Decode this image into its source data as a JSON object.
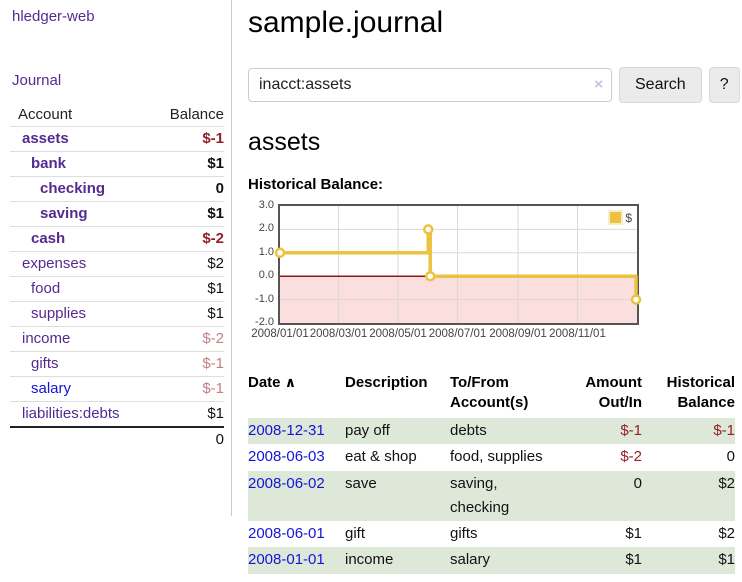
{
  "colors": {
    "link_purple": "#552a90",
    "link_blue": "#1414d6",
    "negative_red": "#932127",
    "dim_negative_red": "#c27f86",
    "stripe_green": "#dee8d9",
    "chart_line_gold": "#edc240",
    "chart_negative_bg": "#fbdede",
    "chart_zero_line": "#8b1a1a",
    "chart_grid": "#d9d9d9",
    "chart_border": "#555555"
  },
  "sidebar": {
    "brand": "hledger-web",
    "journal_label": "Journal",
    "accounts_table": {
      "headers": [
        "Account",
        "Balance"
      ],
      "rows": [
        {
          "name": "assets",
          "depth": 1,
          "bold": true,
          "balance": "$-1",
          "balance_style": "neg",
          "link_style": "purple"
        },
        {
          "name": "bank",
          "depth": 2,
          "bold": true,
          "balance": "$1",
          "balance_style": "pos",
          "link_style": "purple"
        },
        {
          "name": "checking",
          "depth": 3,
          "bold": true,
          "balance": "0",
          "balance_style": "pos",
          "link_style": "purple"
        },
        {
          "name": "saving",
          "depth": 3,
          "bold": true,
          "balance": "$1",
          "balance_style": "pos",
          "link_style": "purple"
        },
        {
          "name": "cash",
          "depth": 2,
          "bold": true,
          "balance": "$-2",
          "balance_style": "neg",
          "link_style": "purple"
        },
        {
          "name": "expenses",
          "depth": 1,
          "bold": false,
          "balance": "$2",
          "balance_style": "pos",
          "link_style": "purple"
        },
        {
          "name": "food",
          "depth": 2,
          "bold": false,
          "balance": "$1",
          "balance_style": "pos",
          "link_style": "purple"
        },
        {
          "name": "supplies",
          "depth": 2,
          "bold": false,
          "balance": "$1",
          "balance_style": "pos",
          "link_style": "purple"
        },
        {
          "name": "income",
          "depth": 1,
          "bold": false,
          "balance": "$-2",
          "balance_style": "dimneg",
          "link_style": "purple"
        },
        {
          "name": "gifts",
          "depth": 2,
          "bold": false,
          "balance": "$-1",
          "balance_style": "dimneg",
          "link_style": "purple"
        },
        {
          "name": "salary",
          "depth": 2,
          "bold": false,
          "balance": "$-1",
          "balance_style": "dimneg",
          "link_style": "blue"
        },
        {
          "name": "liabilities:debts",
          "depth": 1,
          "bold": false,
          "balance": "$1",
          "balance_style": "pos",
          "link_style": "purple"
        }
      ],
      "total": "0"
    }
  },
  "header": {
    "title": "sample.journal"
  },
  "search": {
    "value": "inacct:assets",
    "clear_icon": "×",
    "button": "Search",
    "help_button": "?"
  },
  "account_page": {
    "title": "assets",
    "chart_label": "Historical Balance:"
  },
  "chart_data": {
    "type": "line",
    "title": "Historical Balance",
    "step": true,
    "series": [
      {
        "name": "$",
        "color": "#edc240",
        "points": [
          [
            "2008-01-01",
            1
          ],
          [
            "2008-06-01",
            2
          ],
          [
            "2008-06-03",
            0
          ],
          [
            "2008-12-31",
            -1
          ]
        ]
      }
    ],
    "x_range": [
      "2008-01-01",
      "2009-01-01"
    ],
    "x_ticks": [
      {
        "date": "2008-01-01",
        "label": "2008/01/01"
      },
      {
        "date": "2008-03-01",
        "label": "2008/03/01"
      },
      {
        "date": "2008-05-01",
        "label": "2008/05/01"
      },
      {
        "date": "2008-07-01",
        "label": "2008/07/01"
      },
      {
        "date": "2008-09-01",
        "label": "2008/09/01"
      },
      {
        "date": "2008-11-01",
        "label": "2008/11/01"
      }
    ],
    "y_ticks": [
      {
        "v": 3,
        "label": "3.0"
      },
      {
        "v": 2,
        "label": "2.0"
      },
      {
        "v": 1,
        "label": "1.0"
      },
      {
        "v": 0,
        "label": "0.0"
      },
      {
        "v": -1,
        "label": "-1.0"
      },
      {
        "v": -2,
        "label": "-2.0"
      }
    ],
    "ylim": [
      -2,
      3
    ],
    "grid": true,
    "legend": {
      "label": "$",
      "position": "top-right"
    }
  },
  "register_table": {
    "headers": {
      "date": "Date",
      "sort_icon": "∧",
      "description": "Description",
      "tofrom": "To/From Account(s)",
      "amount": "Amount Out/In",
      "balance": "Historical Balance"
    },
    "rows": [
      {
        "date": "2008-12-31",
        "description": "pay off",
        "accounts": "debts",
        "amount": "$-1",
        "amount_neg": true,
        "balance": "$-1",
        "balance_neg": true
      },
      {
        "date": "2008-06-03",
        "description": "eat & shop",
        "accounts": "food, supplies",
        "amount": "$-2",
        "amount_neg": true,
        "balance": "0",
        "balance_neg": false
      },
      {
        "date": "2008-06-02",
        "description": "save",
        "accounts": "saving, checking",
        "amount": "0",
        "amount_neg": false,
        "balance": "$2",
        "balance_neg": false
      },
      {
        "date": "2008-06-01",
        "description": "gift",
        "accounts": "gifts",
        "amount": "$1",
        "amount_neg": false,
        "balance": "$2",
        "balance_neg": false
      },
      {
        "date": "2008-01-01",
        "description": "income",
        "accounts": "salary",
        "amount": "$1",
        "amount_neg": false,
        "balance": "$1",
        "balance_neg": false
      }
    ]
  }
}
